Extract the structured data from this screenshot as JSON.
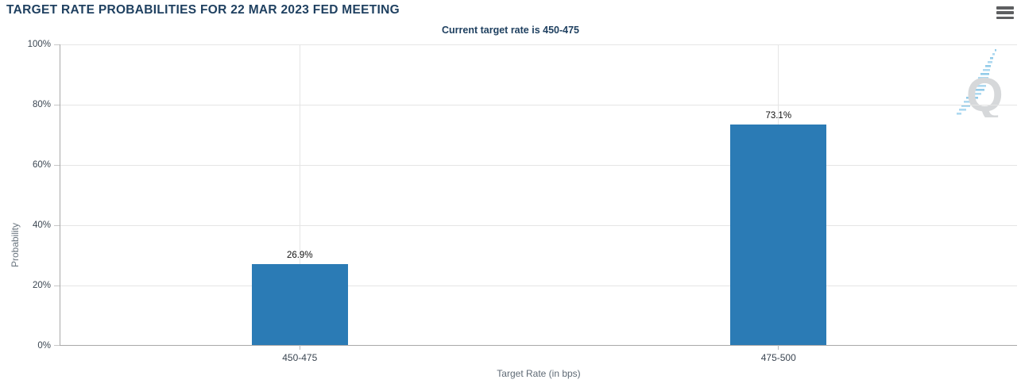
{
  "header": {
    "title": "TARGET RATE PROBABILITIES FOR 22 MAR 2023 FED MEETING",
    "subtitle": "Current target rate is 450-475"
  },
  "menu": {
    "icon": "hamburger-menu-icon"
  },
  "watermark": {
    "icon": "quikstrike-q-logo",
    "letter": "Q"
  },
  "chart_data": {
    "type": "bar",
    "title": "TARGET RATE PROBABILITIES FOR 22 MAR 2023 FED MEETING",
    "subtitle": "Current target rate is 450-475",
    "categories": [
      "450-475",
      "475-500"
    ],
    "values": [
      26.9,
      73.1
    ],
    "value_labels": [
      "26.9%",
      "73.1%"
    ],
    "xlabel": "Target Rate (in bps)",
    "ylabel": "Probability",
    "yticks": [
      "0%",
      "20%",
      "40%",
      "60%",
      "80%",
      "100%"
    ],
    "ytick_values": [
      0,
      20,
      40,
      60,
      80,
      100
    ],
    "ylim": [
      0,
      100
    ],
    "grid": true,
    "legend": "none",
    "bar_color": "#2b7bb5",
    "colors": {
      "title": "#1f4060",
      "axis_line": "#a9a9a9",
      "gridline": "#e5e5e5",
      "tick_label": "#3b4652",
      "axis_title": "#5f6a75",
      "watermark_gray": "#d6d8da",
      "watermark_blue": "#aed9f0"
    }
  }
}
